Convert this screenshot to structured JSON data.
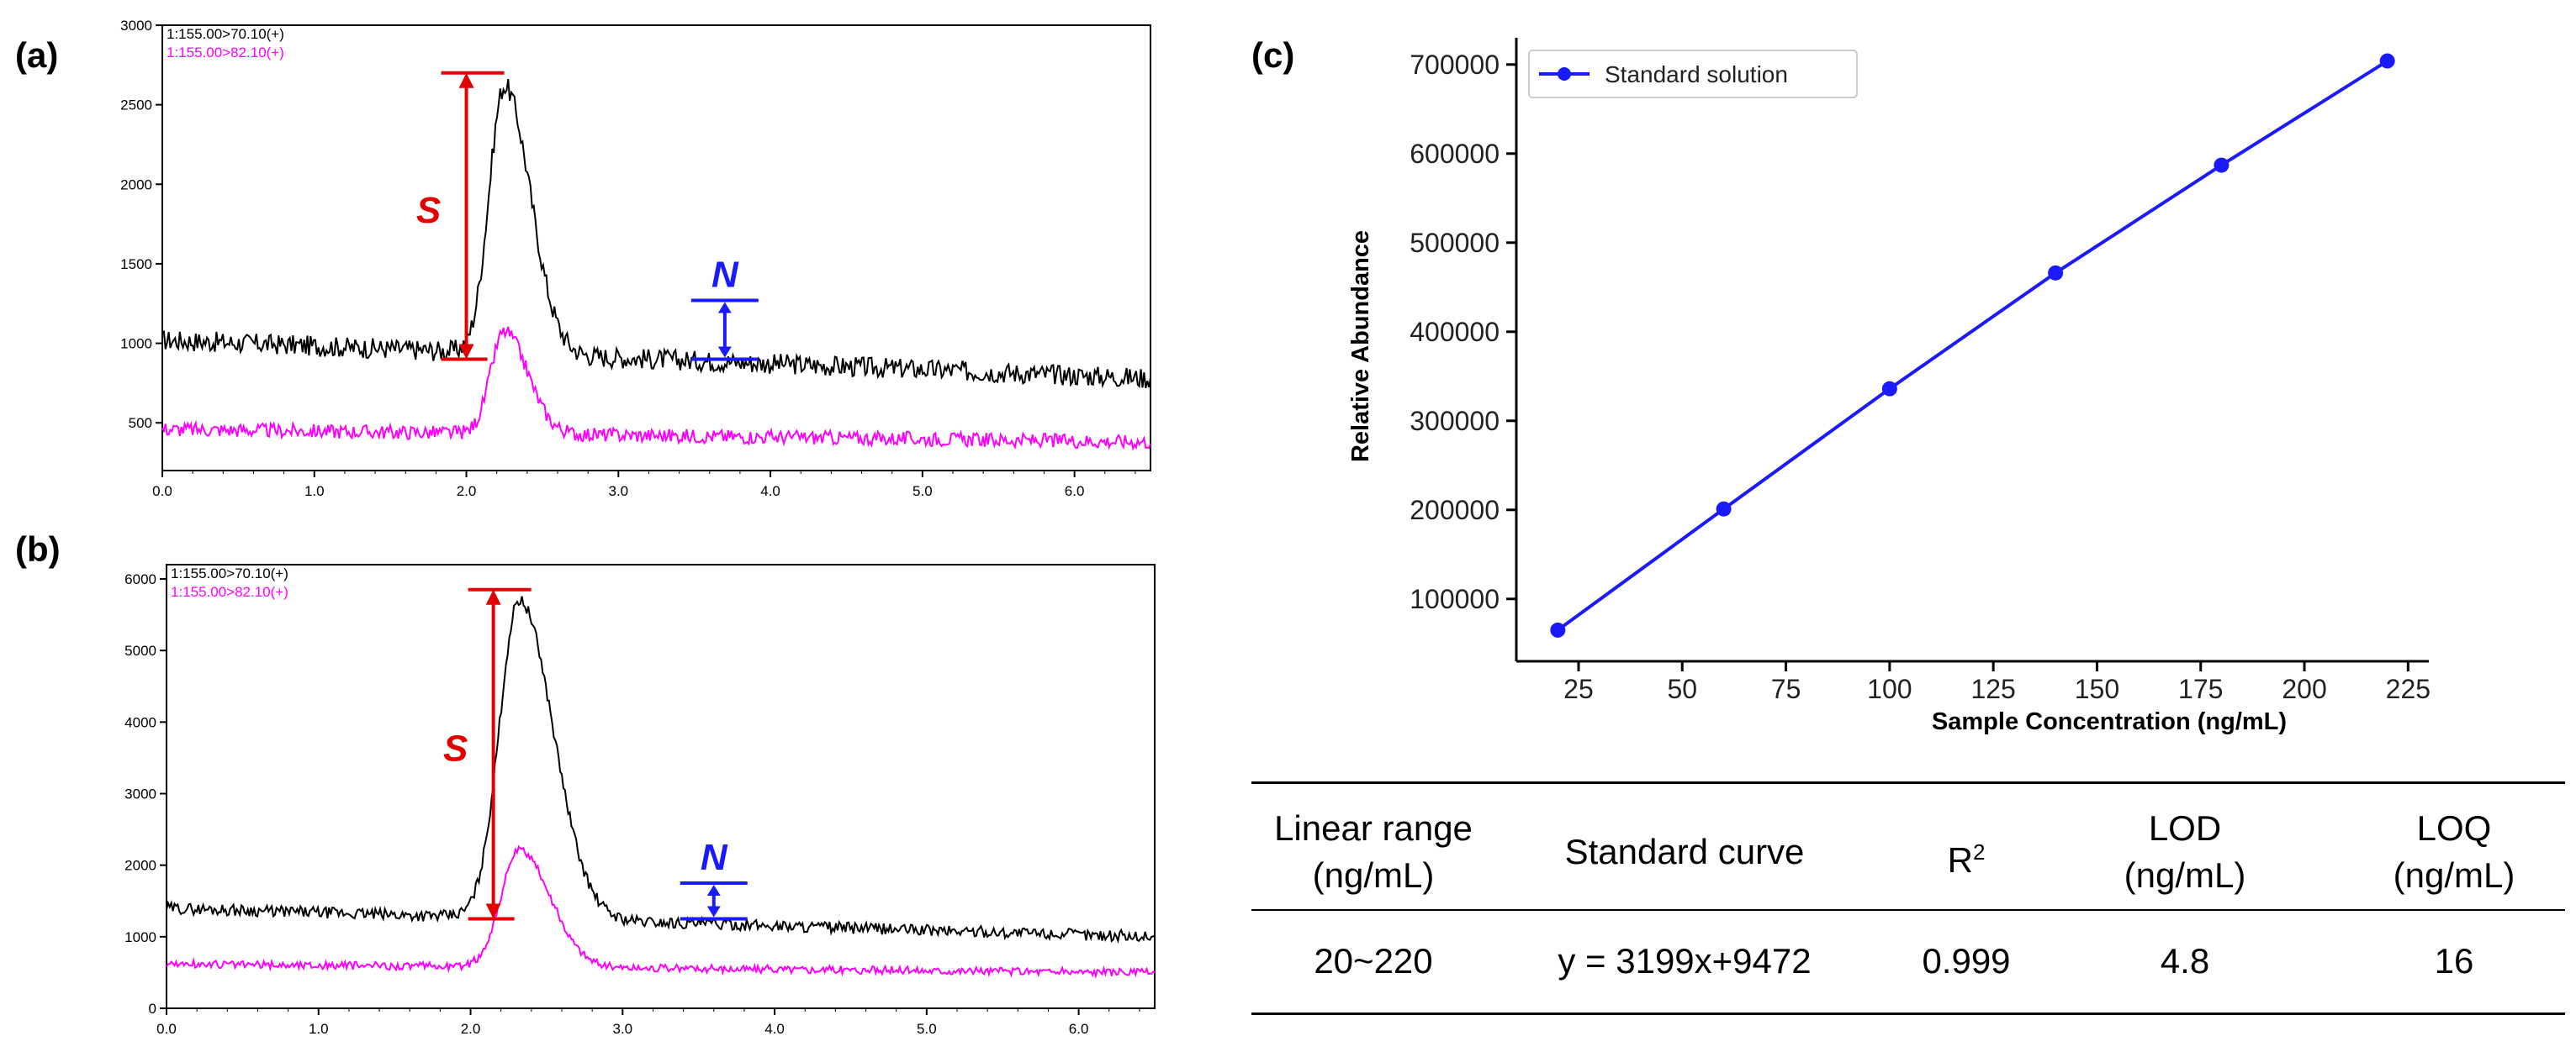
{
  "figure": {
    "panel_labels": [
      "(a)",
      "(b)",
      "(c)"
    ]
  },
  "chart_data": [
    {
      "panel": "(a)",
      "type": "line",
      "title": "",
      "xlabel": "",
      "ylabel": "",
      "xlim": [
        0,
        6.5
      ],
      "ylim": [
        200,
        3000
      ],
      "xticks": [
        "0.0",
        "1.0",
        "2.0",
        "3.0",
        "4.0",
        "5.0",
        "6.0"
      ],
      "yticks": [
        "500",
        "1000",
        "1500",
        "2000",
        "2500",
        "3000"
      ],
      "legend": [
        "1:155.00>70.10(+)",
        "1:155.00>82.10(+)"
      ],
      "series": [
        {
          "name": "1:155.00>70.10(+)",
          "color": "#000000",
          "baseline_start": 1020,
          "baseline_end": 780,
          "noise": 65,
          "peak_x": 2.25,
          "peak_y": 2700,
          "peak_width": 0.1
        },
        {
          "name": "1:155.00>82.10(+)",
          "color": "#ff00ff",
          "baseline_start": 460,
          "baseline_end": 380,
          "noise": 45,
          "peak_x": 2.25,
          "peak_y": 1100,
          "peak_width": 0.09
        }
      ],
      "annotations": {
        "S": {
          "label": "S",
          "x": 2.0,
          "y_low": 900,
          "y_high": 2700,
          "color": "#e00000"
        },
        "N": {
          "label": "N",
          "x": 3.7,
          "y_low": 900,
          "y_high": 1270,
          "color": "#1a1aff"
        }
      }
    },
    {
      "panel": "(b)",
      "type": "line",
      "title": "",
      "xlabel": "",
      "ylabel": "",
      "xlim": [
        0,
        6.5
      ],
      "ylim": [
        0,
        6200
      ],
      "xticks": [
        "0.0",
        "1.0",
        "2.0",
        "3.0",
        "4.0",
        "5.0",
        "6.0"
      ],
      "yticks": [
        "0",
        "1000",
        "2000",
        "3000",
        "4000",
        "5000",
        "6000"
      ],
      "legend": [
        "1:155.00>70.10(+)",
        "1:155.00>82.10(+)"
      ],
      "series": [
        {
          "name": "1:155.00>70.10(+)",
          "color": "#000000",
          "baseline_start": 1400,
          "baseline_end": 1000,
          "noise": 80,
          "peak_x": 2.32,
          "peak_y": 5850,
          "peak_width": 0.13
        },
        {
          "name": "1:155.00>82.10(+)",
          "color": "#ff00ff",
          "baseline_start": 620,
          "baseline_end": 500,
          "noise": 55,
          "peak_x": 2.32,
          "peak_y": 2250,
          "peak_width": 0.12
        }
      ],
      "annotations": {
        "S": {
          "label": "S",
          "x": 2.15,
          "y_low": 1250,
          "y_high": 5850,
          "color": "#e00000"
        },
        "N": {
          "label": "N",
          "x": 3.6,
          "y_low": 1250,
          "y_high": 1750,
          "color": "#1a1aff"
        }
      }
    },
    {
      "panel": "(c)",
      "type": "line",
      "title": "",
      "xlabel": "Sample Concentration (ng/mL)",
      "ylabel": "Relative Abundance",
      "xlim": [
        10,
        230
      ],
      "ylim": [
        30000,
        730000
      ],
      "xticks": [
        25,
        50,
        75,
        100,
        125,
        150,
        175,
        200,
        225
      ],
      "yticks": [
        100000,
        200000,
        300000,
        400000,
        500000,
        600000,
        700000
      ],
      "legend": [
        "Standard solution"
      ],
      "legend_position": "top-left",
      "series": [
        {
          "name": "Standard solution",
          "color": "#1a1aff",
          "x": [
            20,
            60,
            100,
            140,
            180,
            220
          ],
          "y": [
            65000,
            201000,
            336000,
            466000,
            587000,
            704000
          ]
        }
      ]
    }
  ],
  "table": {
    "headers": [
      {
        "line1": "Linear range",
        "line2": "(ng/mL)"
      },
      {
        "line1": "Standard curve",
        "line2": ""
      },
      {
        "line1": "R",
        "sup": "2"
      },
      {
        "line1": "LOD",
        "line2": "(ng/mL)"
      },
      {
        "line1": "LOQ",
        "line2": "(ng/mL)"
      }
    ],
    "row": [
      "20~220",
      "y = 3199x+9472",
      "0.999",
      "4.8",
      "16"
    ]
  }
}
